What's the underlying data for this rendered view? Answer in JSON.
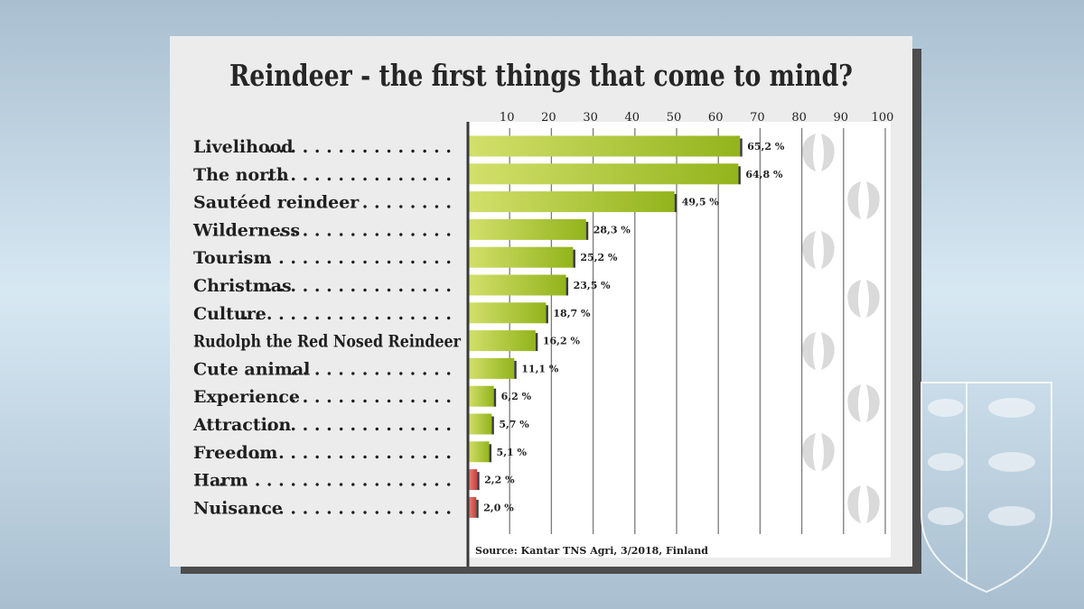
{
  "chart_data": {
    "type": "bar",
    "orientation": "horizontal",
    "title": "Reindeer - the first things that come to mind?",
    "xlim": [
      0,
      100
    ],
    "xticks": [
      10,
      20,
      30,
      40,
      50,
      60,
      70,
      80,
      90,
      100
    ],
    "grid": true,
    "categories": [
      "Livelihood",
      "The north",
      "Sautéed reindeer",
      "Wilderness",
      "Tourism",
      "Christmas",
      "Culture",
      "Rudolph the Red Nosed Reindeer",
      "Cute animal",
      "Experience",
      "Attraction",
      "Freedom",
      "Harm",
      "Nuisance"
    ],
    "values": [
      65.2,
      64.8,
      49.5,
      28.3,
      25.2,
      23.5,
      18.7,
      16.2,
      11.1,
      6.2,
      5.7,
      5.1,
      2.2,
      2.0
    ],
    "value_labels": [
      "65,2 %",
      "64,8 %",
      "49,5 %",
      "28,3 %",
      "25,2 %",
      "23,5 %",
      "18,7 %",
      "16,2 %",
      "11,1 %",
      "6,2 %",
      "5,7 %",
      "5,1 %",
      "2,2 %",
      "2,0 %"
    ],
    "bar_sentiment": [
      "positive",
      "positive",
      "positive",
      "positive",
      "positive",
      "positive",
      "positive",
      "positive",
      "positive",
      "positive",
      "positive",
      "positive",
      "negative",
      "negative"
    ],
    "colors": {
      "positive_dark": "#93b41c",
      "positive_light": "#d3e06c",
      "negative": "#d9524b",
      "axis": "#3a3a3a"
    },
    "source": "Source: Kantar TNS Agri, 3/2018, Finland"
  }
}
